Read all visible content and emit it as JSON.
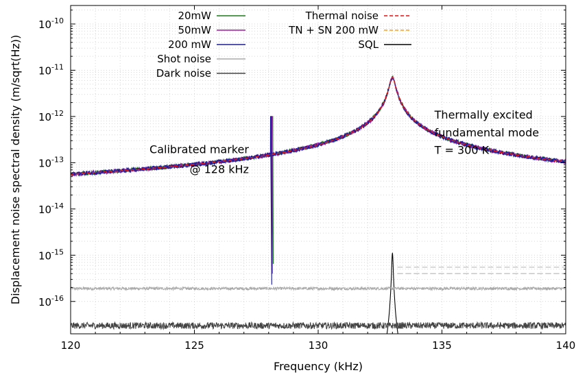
{
  "chart_data": {
    "type": "line",
    "xlabel": "Frequency (kHz)",
    "ylabel": "Displacement noise spectral density (m/sqrt(Hz))",
    "xlim": [
      120,
      140
    ],
    "ylim_log10": [
      -16.7,
      -9.6
    ],
    "yscale": "log",
    "grid": true,
    "legend": "top-center",
    "x_ticks": [
      120,
      125,
      130,
      135,
      140
    ],
    "y_ticks": [
      {
        "exp": -10,
        "label_base": "10",
        "label_exp": "-10"
      },
      {
        "exp": -11,
        "label_base": "10",
        "label_exp": "-11"
      },
      {
        "exp": -12,
        "label_base": "10",
        "label_exp": "-12"
      },
      {
        "exp": -13,
        "label_base": "10",
        "label_exp": "-13"
      },
      {
        "exp": -14,
        "label_base": "10",
        "label_exp": "-14"
      },
      {
        "exp": -15,
        "label_base": "10",
        "label_exp": "-15"
      },
      {
        "exp": -16,
        "label_base": "10",
        "label_exp": "-16"
      }
    ],
    "mode": {
      "f0_kHz": 133.0,
      "peak": 7e-12,
      "linewidth_kHz": 0.21
    },
    "marker": {
      "f_kHz": 128.1,
      "peak": 1e-12
    },
    "series": [
      {
        "name": "20mW",
        "color": "#1a7a1a",
        "style": "solid",
        "kind": "measured",
        "floor": 6.5e-16,
        "marker_offset": 0.12
      },
      {
        "name": "50mW",
        "color": "#9c1a9c",
        "style": "solid",
        "kind": "measured",
        "floor": 4e-16,
        "marker_offset": 0.0
      },
      {
        "name": "200 mW",
        "color": "#1a1a9c",
        "style": "solid",
        "kind": "measured",
        "floor": 2.3e-16,
        "marker_offset": -0.08
      },
      {
        "name": "Shot noise",
        "color": "#aaaaaa",
        "style": "solid",
        "kind": "flat",
        "floor": 1.9e-16
      },
      {
        "name": "Dark noise",
        "color": "#444444",
        "style": "solid",
        "kind": "flat",
        "floor": 3e-17
      },
      {
        "name": "Thermal noise",
        "color": "#dd1111",
        "style": "dashed",
        "kind": "thermal"
      },
      {
        "name": "TN + SN 200 mW",
        "color": "#f0a030",
        "style": "dashed",
        "kind": "thermal_sn",
        "floor": 1.9e-16
      },
      {
        "name": "SQL",
        "color": "#000000",
        "style": "solid",
        "kind": "sql",
        "peak": 1.1e-15
      }
    ],
    "reference_lines": [
      {
        "y": 5.5e-16,
        "x_from": 133.2,
        "x_to": 140,
        "color": "#bbbbbb",
        "style": "dashed"
      },
      {
        "y": 4e-16,
        "x_from": 133.2,
        "x_to": 140,
        "color": "#bbbbbb",
        "style": "dashed"
      }
    ],
    "annotations": [
      {
        "text": "Calibrated marker",
        "x": 127.2,
        "y": 1.6e-13,
        "anchor": "end"
      },
      {
        "text": "@ 128 kHz",
        "x": 127.2,
        "y": 6e-14,
        "anchor": "end"
      },
      {
        "text": "Thermally excited",
        "x": 134.7,
        "y": 9e-13,
        "anchor": "start"
      },
      {
        "text": "fundamental mode",
        "x": 134.7,
        "y": 3.7e-13,
        "anchor": "start"
      },
      {
        "text": "T = 300 K",
        "x": 134.7,
        "y": 1.55e-13,
        "anchor": "start"
      }
    ]
  }
}
